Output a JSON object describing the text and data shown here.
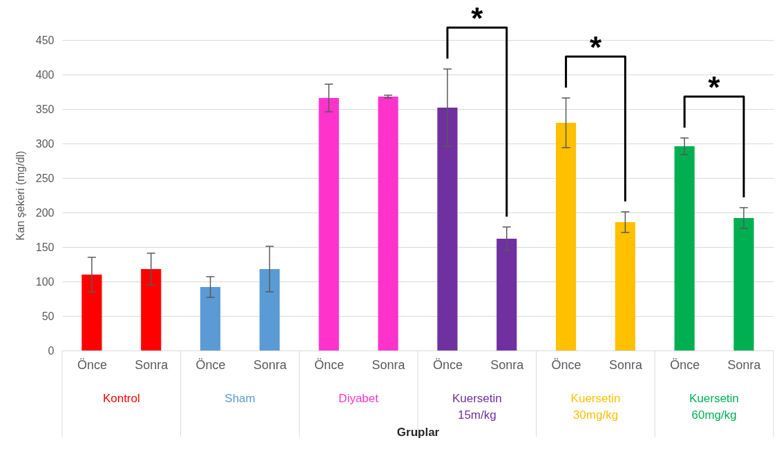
{
  "chart_data": {
    "type": "bar",
    "xlabel": "Gruplar",
    "ylabel": "Kan şekeri (mg/dl)",
    "categories": [
      "Önce",
      "Sonra",
      "Önce",
      "Sonra",
      "Önce",
      "Sonra",
      "Önce",
      "Sonra",
      "Önce",
      "Sonra",
      "Önce",
      "Sonra"
    ],
    "series": [
      {
        "name": "Kontrol",
        "color": "#ff0000",
        "values": [
          110,
          118,
          null,
          null,
          null,
          null,
          null,
          null,
          null,
          null,
          null,
          null
        ],
        "errors": [
          25,
          23,
          null,
          null,
          null,
          null,
          null,
          null,
          null,
          null,
          null,
          null
        ]
      },
      {
        "name": "Sham",
        "color": "#5b9bd5",
        "values": [
          null,
          null,
          92,
          118,
          null,
          null,
          null,
          null,
          null,
          null,
          null,
          null
        ],
        "errors": [
          null,
          null,
          15,
          33,
          null,
          null,
          null,
          null,
          null,
          null,
          null,
          null
        ]
      },
      {
        "name": "Diyabet",
        "color": "#ff33cc",
        "values": [
          null,
          null,
          null,
          null,
          366,
          368,
          null,
          null,
          null,
          null,
          null,
          null
        ],
        "errors": [
          null,
          null,
          null,
          null,
          20,
          2,
          null,
          null,
          null,
          null,
          null,
          null
        ]
      },
      {
        "name": "Kuersetin\n15m/kg",
        "color": "#7030a0",
        "values": [
          null,
          null,
          null,
          null,
          null,
          null,
          352,
          162,
          null,
          null,
          null,
          null
        ],
        "errors": [
          null,
          null,
          null,
          null,
          null,
          null,
          56,
          17,
          null,
          null,
          null,
          null
        ]
      },
      {
        "name": "Kuersetin\n30mg/kg",
        "color": "#ffc000",
        "values": [
          null,
          null,
          null,
          null,
          null,
          null,
          null,
          null,
          330,
          186,
          null,
          null
        ],
        "errors": [
          null,
          null,
          null,
          null,
          null,
          null,
          null,
          null,
          36,
          15,
          null,
          null
        ]
      },
      {
        "name": "Kuersetin\n60mg/kg",
        "color": "#00b050",
        "values": [
          null,
          null,
          null,
          null,
          null,
          null,
          null,
          null,
          null,
          null,
          296,
          192
        ],
        "errors": [
          null,
          null,
          null,
          null,
          null,
          null,
          null,
          null,
          null,
          null,
          12,
          15
        ]
      }
    ],
    "ylim": [
      0,
      450
    ],
    "yticks": [
      0,
      50,
      100,
      150,
      200,
      250,
      300,
      350,
      400,
      450
    ],
    "grid": "y",
    "annotations": [
      "*",
      "*",
      "*"
    ]
  }
}
